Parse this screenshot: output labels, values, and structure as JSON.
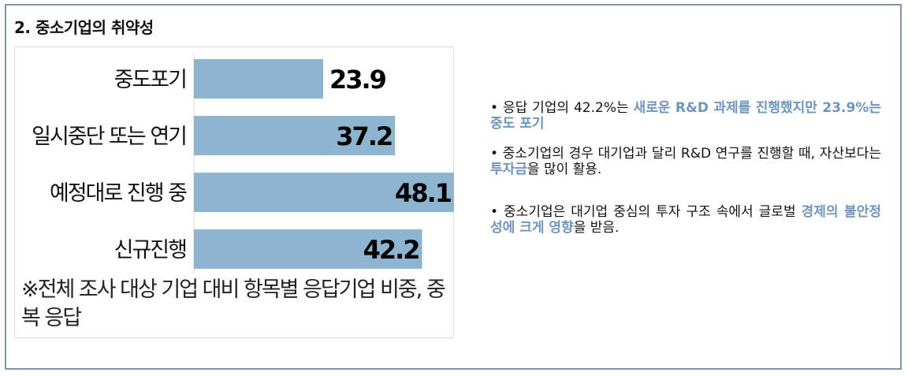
{
  "section_title": "2. 중소기업의 취약성",
  "chart_data": {
    "type": "bar",
    "orientation": "horizontal",
    "categories": [
      "중도포기",
      "일시중단 또는 연기",
      "예정대로 진행 중",
      "신규진행"
    ],
    "values": [
      23.9,
      37.2,
      48.1,
      42.2
    ],
    "value_labels": [
      "23.9",
      "37.2",
      "48.1",
      "42.2"
    ],
    "xlim": [
      0,
      48.1
    ],
    "bar_color": "#8eb4d0",
    "grid": false,
    "legend": "none"
  },
  "footnote": "※전체 조사 대상 기업 대비 항목별 응답기업 비중, 중복 응답",
  "notes": [
    {
      "parts": [
        {
          "text": "응답 기업의 42.2%는 ",
          "highlight": false
        },
        {
          "text": "새로운 R&D 과제를 진행했지만 23.9%는 중도 포기",
          "highlight": true
        }
      ]
    },
    {
      "parts": [
        {
          "text": "중소기업의 경우 대기업과 달리 R&D 연구를 진행할 때, 자산보다는 ",
          "highlight": false
        },
        {
          "text": "투자금",
          "highlight": true
        },
        {
          "text": "을 많이 활용.",
          "highlight": false
        }
      ]
    },
    {
      "parts": [
        {
          "text": "중소기업은 대기업 중심의 투자 구조 속에서 글로벌 ",
          "highlight": false
        },
        {
          "text": "경제의 불안정성에 크게 영향",
          "highlight": true
        },
        {
          "text": "을 받음.",
          "highlight": false
        }
      ]
    }
  ],
  "colors": {
    "highlight": "#6f95bd",
    "frame": "#8196ae"
  }
}
